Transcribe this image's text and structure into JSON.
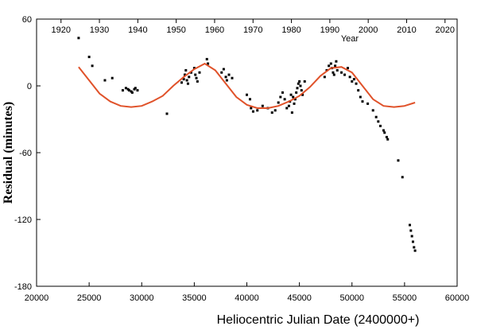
{
  "chart_data": {
    "type": "scatter",
    "title": "",
    "xlabel": "Heliocentric Julian Date  (2400000+)",
    "ylabel": "Residual (minutes)",
    "top_axis_label": "Year",
    "xlim": [
      20000,
      60000
    ],
    "ylim": [
      -180,
      60
    ],
    "x_ticks": [
      "20000",
      "25000",
      "30000",
      "35000",
      "40000",
      "45000",
      "50000",
      "55000",
      "60000"
    ],
    "y_ticks": [
      "60",
      "0",
      "-60",
      "-120",
      "-180"
    ],
    "top_ticks": [
      "1920",
      "1930",
      "1940",
      "1950",
      "1960",
      "1970",
      "1980",
      "1990",
      "2000",
      "2010",
      "2020"
    ],
    "grid": false,
    "series": [
      {
        "kind": "points",
        "color": "#000000",
        "x": [
          24000,
          25000,
          25300,
          26500,
          27200,
          28200,
          28500,
          28700,
          28800,
          29000,
          29100,
          29300,
          29400,
          29600,
          32400,
          33800,
          34000,
          34100,
          34200,
          34300,
          34400,
          34500,
          34700,
          35000,
          35100,
          35200,
          35300,
          35500,
          36200,
          36300,
          37600,
          37800,
          38000,
          38100,
          38300,
          38600,
          40000,
          40300,
          40400,
          40600,
          41000,
          41500,
          42000,
          42400,
          42700,
          43000,
          43200,
          43400,
          43600,
          43800,
          44000,
          44100,
          44200,
          44300,
          44400,
          44500,
          44600,
          44700,
          44800,
          44900,
          45000,
          45100,
          45200,
          45300,
          45500,
          47400,
          47600,
          47800,
          48000,
          48100,
          48200,
          48300,
          48400,
          48500,
          48600,
          49000,
          49300,
          49600,
          49800,
          50000,
          50200,
          50400,
          50600,
          50800,
          51000,
          51500,
          52000,
          52300,
          52500,
          52700,
          53000,
          53100,
          53300,
          53400,
          54400,
          54800,
          55500,
          55600,
          55700,
          55800,
          55900,
          56000
        ],
        "y": [
          43,
          26,
          18,
          5,
          7,
          -4,
          -2,
          -3,
          -4,
          -5,
          -6,
          -3,
          -2,
          -4,
          -25,
          3,
          6,
          10,
          14,
          5,
          2,
          8,
          12,
          16,
          10,
          7,
          4,
          12,
          24,
          20,
          12,
          15,
          8,
          5,
          10,
          7,
          -8,
          -12,
          -20,
          -23,
          -22,
          -18,
          -20,
          -24,
          -22,
          -15,
          -10,
          -6,
          -12,
          -20,
          -18,
          -14,
          -8,
          -24,
          -10,
          -16,
          -12,
          -6,
          -2,
          2,
          4,
          0,
          -4,
          -8,
          4,
          8,
          14,
          18,
          20,
          16,
          12,
          10,
          18,
          22,
          14,
          12,
          10,
          16,
          8,
          4,
          6,
          2,
          -4,
          -10,
          -14,
          -16,
          -22,
          -28,
          -32,
          -36,
          -40,
          -42,
          -46,
          -48,
          -67,
          -82,
          -125,
          -130,
          -135,
          -140,
          -145,
          -148
        ]
      },
      {
        "kind": "curve",
        "color": "#e0522a",
        "x": [
          24000,
          25000,
          26000,
          27000,
          28000,
          29000,
          30000,
          31000,
          32000,
          33000,
          34000,
          35000,
          36000,
          37000,
          38000,
          39000,
          40000,
          41000,
          42000,
          43000,
          44000,
          45000,
          46000,
          47000,
          48000,
          49000,
          50000,
          51000,
          52000,
          53000,
          54000,
          55000,
          56000
        ],
        "y": [
          17,
          5,
          -7,
          -14,
          -18,
          -19,
          -18,
          -14,
          -9,
          0,
          8,
          15,
          20,
          14,
          2,
          -10,
          -17,
          -20,
          -20,
          -18,
          -14,
          -9,
          -1,
          9,
          16,
          17,
          12,
          0,
          -12,
          -18,
          -19,
          -18,
          -15
        ]
      }
    ]
  }
}
